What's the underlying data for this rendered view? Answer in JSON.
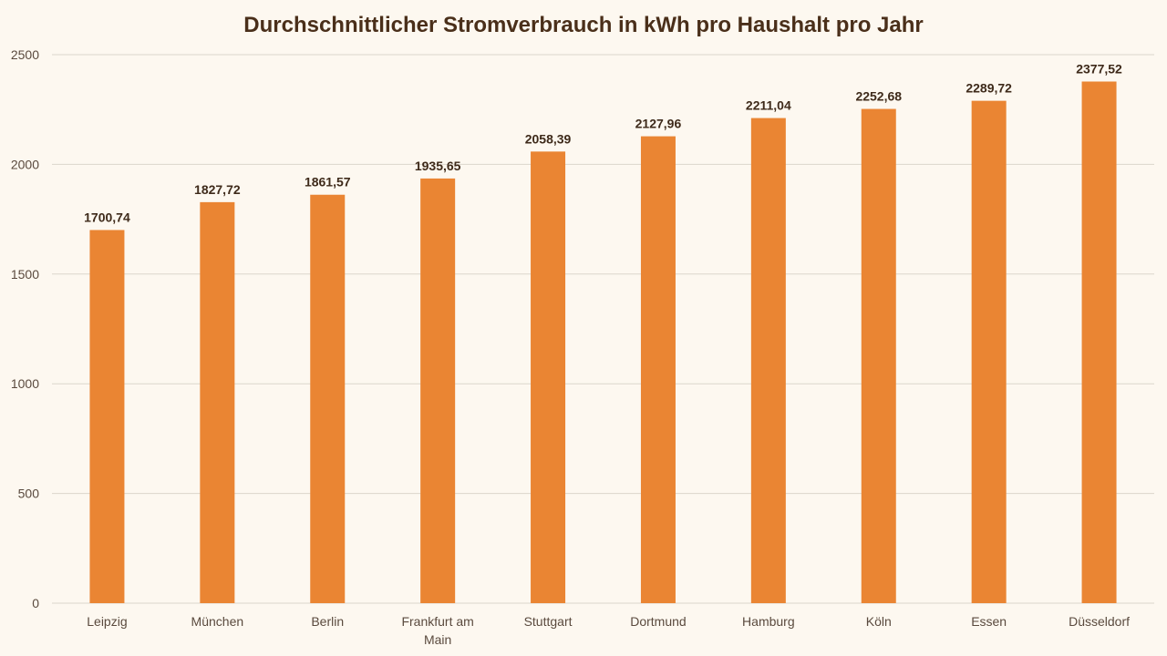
{
  "chart_data": {
    "type": "bar",
    "title": "Durchschnittlicher Stromverbrauch in kWh pro Haushalt pro Jahr",
    "xlabel": "",
    "ylabel": "",
    "categories": [
      "Leipzig",
      "München",
      "Berlin",
      "Frankfurt am Main",
      "Stuttgart",
      "Dortmund",
      "Hamburg",
      "Köln",
      "Essen",
      "Düsseldorf"
    ],
    "values": [
      1700.74,
      1827.72,
      1861.57,
      1935.65,
      2058.39,
      2127.96,
      2211.04,
      2252.68,
      2289.72,
      2377.52
    ],
    "data_labels": [
      "1700,74",
      "1827,72",
      "1861,57",
      "1935,65",
      "2058,39",
      "2127,96",
      "2211,04",
      "2252,68",
      "2289,72",
      "2377,52"
    ],
    "ylim": [
      0,
      2500
    ],
    "yticks": [
      0,
      500,
      1000,
      1500,
      2000,
      2500
    ],
    "grid": true,
    "legend": "none",
    "colors": {
      "bar": "#ea8533",
      "background": "#fdf8f0",
      "grid": "#dcd6cc"
    }
  }
}
